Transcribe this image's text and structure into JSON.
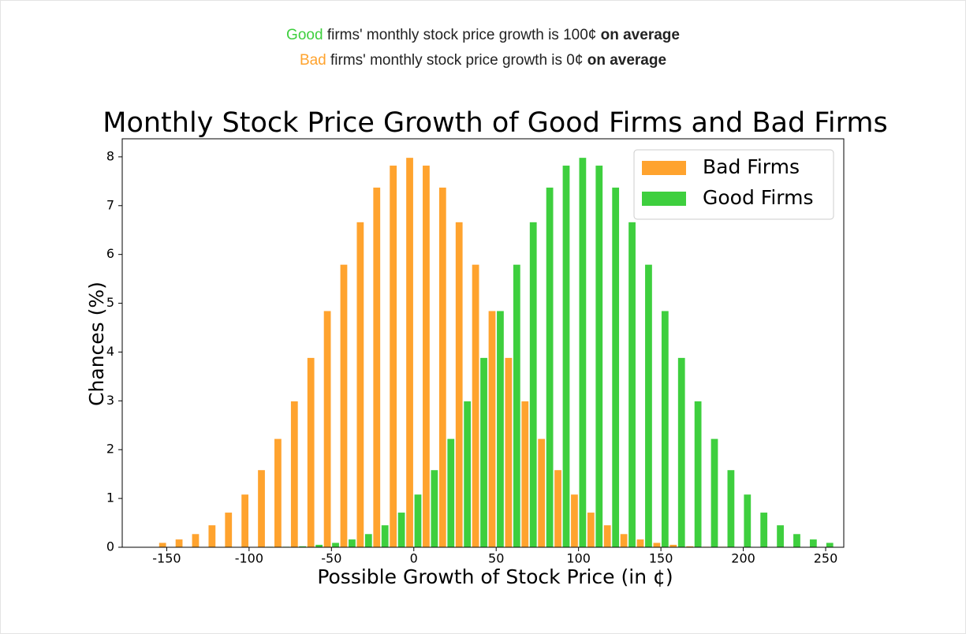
{
  "header": {
    "line1": {
      "highlight": "Good",
      "text": "firms' monthly stock price growth is 100¢",
      "bold": "on average"
    },
    "line2": {
      "highlight": "Bad",
      "text": "firms' monthly stock price growth is 0¢",
      "bold": "on average"
    }
  },
  "chart_data": {
    "type": "grouped-bar",
    "title": "Monthly Stock Price Growth of Good Firms and Bad Firms",
    "x_label": "Possible Growth of Stock Price (in ¢)",
    "y_label": "Chances (%)",
    "x": [
      -150,
      -140,
      -130,
      -120,
      -110,
      -100,
      -90,
      -80,
      -70,
      -60,
      -50,
      -40,
      -30,
      -20,
      -10,
      0,
      10,
      20,
      30,
      40,
      50,
      60,
      70,
      80,
      90,
      100,
      110,
      120,
      130,
      140,
      150,
      160,
      170,
      180,
      190,
      200,
      210,
      220,
      230,
      240,
      250
    ],
    "series": [
      {
        "name": "Bad Firms",
        "color": "#ffa32e",
        "values": [
          0.09,
          0.16,
          0.27,
          0.45,
          0.71,
          1.08,
          1.58,
          2.22,
          2.99,
          3.88,
          4.84,
          5.79,
          6.66,
          7.37,
          7.82,
          7.98,
          7.82,
          7.37,
          6.66,
          5.79,
          4.84,
          3.88,
          2.99,
          2.22,
          1.58,
          1.08,
          0.71,
          0.45,
          0.27,
          0.16,
          0.09,
          0.05,
          0.02,
          0.01,
          0.01,
          0,
          0,
          0,
          0,
          0,
          0
        ]
      },
      {
        "name": "Good Firms",
        "color": "#3ecf3e",
        "values": [
          0,
          0,
          0,
          0,
          0,
          0,
          0.01,
          0.01,
          0.02,
          0.05,
          0.09,
          0.16,
          0.27,
          0.45,
          0.71,
          1.08,
          1.58,
          2.22,
          2.99,
          3.88,
          4.84,
          5.79,
          6.66,
          7.37,
          7.82,
          7.98,
          7.82,
          7.37,
          6.66,
          5.79,
          4.84,
          3.88,
          2.99,
          2.22,
          1.58,
          1.08,
          0.71,
          0.45,
          0.27,
          0.16,
          0.09
        ]
      }
    ],
    "xlim": [
      -177,
      261
    ],
    "xticks": [
      -150,
      -100,
      -50,
      0,
      50,
      100,
      150,
      200,
      250
    ],
    "ylim": [
      0,
      8.37
    ],
    "yticks": [
      0,
      1,
      2,
      3,
      4,
      5,
      6,
      7,
      8
    ],
    "legend": "upper right"
  }
}
